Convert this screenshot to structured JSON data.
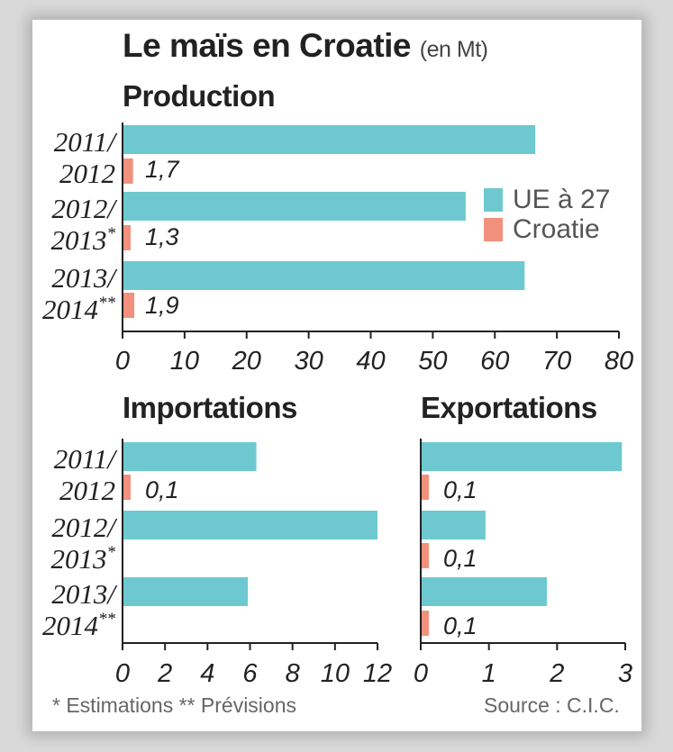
{
  "title": "Le maïs en Croatie",
  "title_unit": "(en Mt)",
  "footnote": "* Estimations ** Prévisions",
  "source": "Source : C.I.C.",
  "legend": {
    "ue": "UE à 27",
    "croatie": "Croatie"
  },
  "colors": {
    "ue": "#6dc9cf",
    "croatie": "#f1917d",
    "axis": "#222222"
  },
  "periods": [
    {
      "l1": "2011/",
      "l2": "2012",
      "sup": ""
    },
    {
      "l1": "2012/",
      "l2": "2013",
      "sup": "*"
    },
    {
      "l1": "2013/",
      "l2": "2014",
      "sup": "**"
    }
  ],
  "chart_data": [
    {
      "type": "bar",
      "orientation": "horizontal",
      "title": "Production",
      "categories": [
        "2011/2012",
        "2012/2013*",
        "2013/2014**"
      ],
      "series": [
        {
          "name": "UE à 27",
          "values": [
            66.5,
            55.3,
            64.8
          ]
        },
        {
          "name": "Croatie",
          "values": [
            1.7,
            1.3,
            1.9
          ],
          "labels": [
            "1,7",
            "1,3",
            "1,9"
          ]
        }
      ],
      "xlim": [
        0,
        80
      ],
      "xticks": [
        0,
        10,
        20,
        30,
        40,
        50,
        60,
        70,
        80
      ],
      "legend_position": "right"
    },
    {
      "type": "bar",
      "orientation": "horizontal",
      "title": "Importations",
      "categories": [
        "2011/2012",
        "2012/2013*",
        "2013/2014**"
      ],
      "series": [
        {
          "name": "UE à 27",
          "values": [
            6.3,
            12.0,
            5.9
          ]
        },
        {
          "name": "Croatie",
          "values": [
            0.1,
            0,
            0
          ],
          "labels": [
            "0,1",
            "",
            ""
          ]
        }
      ],
      "xlim": [
        0,
        12
      ],
      "xticks": [
        0,
        2,
        4,
        6,
        8,
        10,
        12
      ]
    },
    {
      "type": "bar",
      "orientation": "horizontal",
      "title": "Exportations",
      "categories": [
        "2011/2012",
        "2012/2013*",
        "2013/2014**"
      ],
      "series": [
        {
          "name": "UE à 27",
          "values": [
            2.95,
            0.95,
            1.85
          ]
        },
        {
          "name": "Croatie",
          "values": [
            0.1,
            0.1,
            0.1
          ],
          "labels": [
            "0,1",
            "0,1",
            "0,1"
          ]
        }
      ],
      "xlim": [
        0,
        3
      ],
      "xticks": [
        0,
        1,
        2,
        3
      ]
    }
  ]
}
